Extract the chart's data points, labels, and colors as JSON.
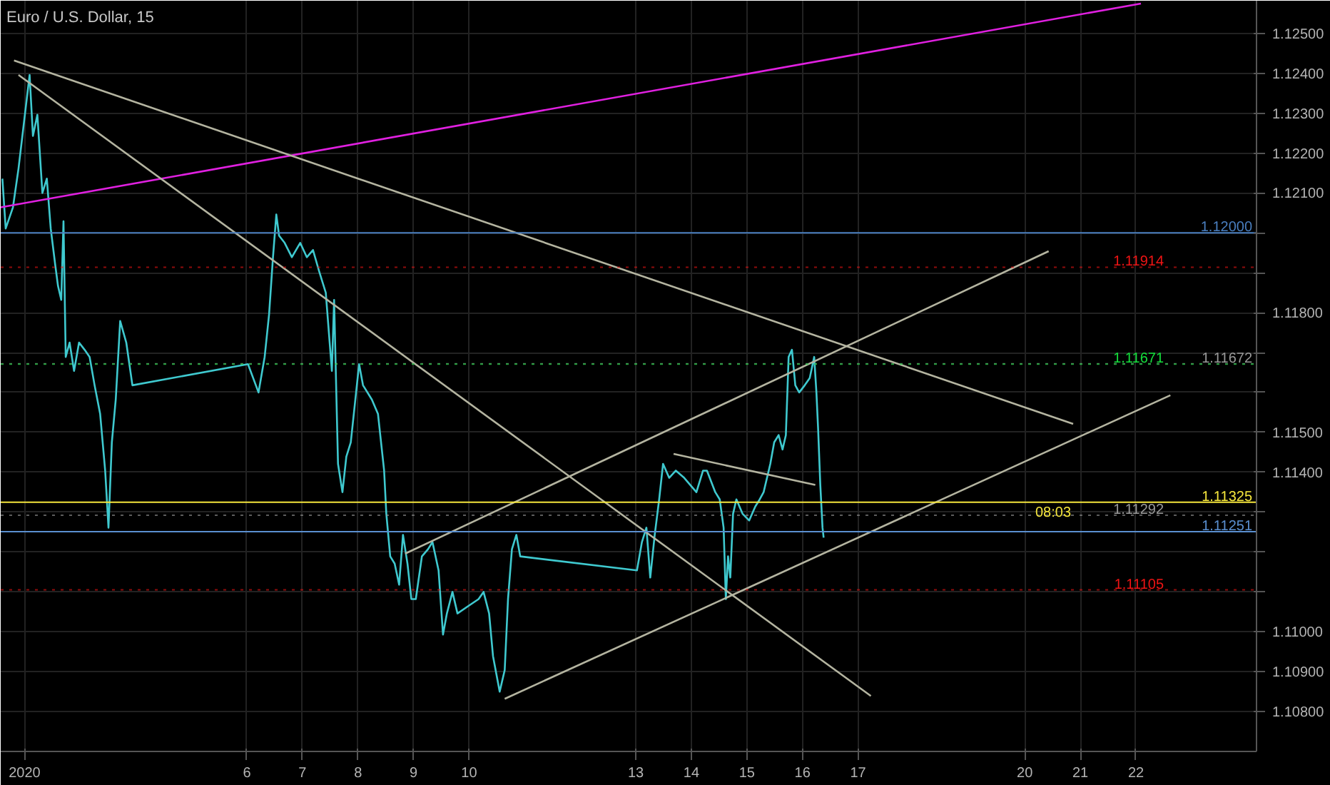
{
  "chart_data": {
    "type": "line",
    "title": "Euro / U.S. Dollar, 15",
    "xlim": [
      "2020-01-01T13:41",
      "2020-01-24T04:05"
    ],
    "ylim": [
      1.107,
      1.12582
    ],
    "xticks": [
      {
        "value": "2020-01-02",
        "label": "2020"
      },
      {
        "value": "2020-01-06",
        "label": "6"
      },
      {
        "value": "2020-01-07",
        "label": "7"
      },
      {
        "value": "2020-01-08",
        "label": "8"
      },
      {
        "value": "2020-01-09",
        "label": "9"
      },
      {
        "value": "2020-01-10",
        "label": "10"
      },
      {
        "value": "2020-01-13",
        "label": "13"
      },
      {
        "value": "2020-01-14",
        "label": "14"
      },
      {
        "value": "2020-01-15",
        "label": "15"
      },
      {
        "value": "2020-01-16",
        "label": "16"
      },
      {
        "value": "2020-01-17",
        "label": "17"
      },
      {
        "value": "2020-01-20",
        "label": "20"
      },
      {
        "value": "2020-01-21",
        "label": "21"
      },
      {
        "value": "2020-01-22",
        "label": "22"
      }
    ],
    "yticks": [
      {
        "value": 1.108,
        "label": "1.10800"
      },
      {
        "value": 1.109,
        "label": "1.10900"
      },
      {
        "value": 1.11,
        "label": "1.11000"
      },
      {
        "value": 1.111,
        "label": null
      },
      {
        "value": 1.112,
        "label": null
      },
      {
        "value": 1.113,
        "label": null
      },
      {
        "value": 1.114,
        "label": "1.11400"
      },
      {
        "value": 1.115,
        "label": "1.11500"
      },
      {
        "value": 1.116,
        "label": null
      },
      {
        "value": 1.117,
        "label": null
      },
      {
        "value": 1.118,
        "label": "1.11800"
      },
      {
        "value": 1.119,
        "label": null
      },
      {
        "value": 1.12,
        "label": null
      },
      {
        "value": 1.121,
        "label": "1.12100"
      },
      {
        "value": 1.122,
        "label": "1.12200"
      },
      {
        "value": 1.123,
        "label": "1.12300"
      },
      {
        "value": 1.124,
        "label": "1.12400"
      },
      {
        "value": 1.125,
        "label": "1.12500"
      }
    ],
    "grid": true,
    "marker": "none",
    "line_style": "solid",
    "series": [
      {
        "color": "#3fc9cf",
        "x": [
          "2020-01-01T14:24",
          "2020-01-01T15:50",
          "2020-01-01T18:58",
          "2020-01-01T21:22",
          "2020-01-02T00:29",
          "2020-01-02T02:10",
          "2020-01-02T03:36",
          "2020-01-02T05:31",
          "2020-01-02T07:41",
          "2020-01-02T09:36",
          "2020-01-02T11:17",
          "2020-01-02T13:12",
          "2020-01-02T14:24",
          "2020-01-02T15:50",
          "2020-01-02T16:48",
          "2020-01-02T17:46",
          "2020-01-02T19:26",
          "2020-01-02T21:22",
          "2020-01-02T23:31",
          "2020-01-03T01:55",
          "2020-01-03T04:05",
          "2020-01-03T06:14",
          "2020-01-03T08:38",
          "2020-01-03T10:48",
          "2020-01-03T12:14",
          "2020-01-03T13:41",
          "2020-01-03T15:22",
          "2020-01-03T17:17",
          "2020-01-03T19:55",
          "2020-01-03T22:34",
          "2020-01-06T00:29",
          "2020-01-06T05:02",
          "2020-01-06T07:41",
          "2020-01-06T09:36",
          "2020-01-06T11:17",
          "2020-01-06T12:43",
          "2020-01-06T13:55",
          "2020-01-06T16:19",
          "2020-01-06T19:26",
          "2020-01-06T23:02",
          "2020-01-07T01:55",
          "2020-01-07T04:34",
          "2020-01-07T07:12",
          "2020-01-07T10:05",
          "2020-01-07T11:46",
          "2020-01-07T12:43",
          "2020-01-07T13:41",
          "2020-01-07T15:22",
          "2020-01-07T17:17",
          "2020-01-07T18:58",
          "2020-01-07T20:53",
          "2020-01-08T00:29",
          "2020-01-08T02:10",
          "2020-01-08T06:00",
          "2020-01-08T08:38",
          "2020-01-08T11:17",
          "2020-01-08T12:14",
          "2020-01-08T13:55",
          "2020-01-08T15:50",
          "2020-01-08T17:46",
          "2020-01-08T19:26",
          "2020-01-08T21:22",
          "2020-01-08T23:02",
          "2020-01-09T00:58",
          "2020-01-09T03:36",
          "2020-01-09T06:14",
          "2020-01-09T08:10",
          "2020-01-09T10:48",
          "2020-01-09T12:43",
          "2020-01-09T14:24",
          "2020-01-09T16:48",
          "2020-01-09T18:58",
          "2020-01-09T23:31",
          "2020-01-10T04:05",
          "2020-01-10T06:14",
          "2020-01-10T08:38",
          "2020-01-10T10:19",
          "2020-01-10T13:12",
          "2020-01-10T15:22",
          "2020-01-10T16:48",
          "2020-01-10T18:29",
          "2020-01-10T20:24",
          "2020-01-10T22:05",
          "2020-01-13T00:29",
          "2020-01-13T02:38",
          "2020-01-13T04:34",
          "2020-01-13T06:14",
          "2020-01-13T08:10",
          "2020-01-13T10:05",
          "2020-01-13T11:46",
          "2020-01-13T14:24",
          "2020-01-13T17:17",
          "2020-01-13T20:53",
          "2020-01-13T23:31",
          "2020-01-14T02:10",
          "2020-01-14T05:02",
          "2020-01-14T06:43",
          "2020-01-14T10:19",
          "2020-01-14T12:14",
          "2020-01-14T13:55",
          "2020-01-14T14:53",
          "2020-01-14T15:50",
          "2020-01-14T16:48",
          "2020-01-14T18:00",
          "2020-01-14T19:26",
          "2020-01-14T22:05",
          "2020-01-15T00:58",
          "2020-01-15T03:36",
          "2020-01-15T05:31",
          "2020-01-15T07:12",
          "2020-01-15T10:05",
          "2020-01-15T11:46",
          "2020-01-15T13:41",
          "2020-01-15T15:22",
          "2020-01-15T16:48",
          "2020-01-15T18:00",
          "2020-01-15T19:26",
          "2020-01-15T20:53",
          "2020-01-15T22:34",
          "2020-01-16T00:58",
          "2020-01-16T03:07",
          "2020-01-16T05:02",
          "2020-01-16T06:00",
          "2020-01-16T06:43",
          "2020-01-16T07:41",
          "2020-01-16T08:38",
          "2020-01-16T09:07"
        ],
        "values": [
          1.12136,
          1.12011,
          1.12064,
          1.12161,
          1.12314,
          1.12396,
          1.12243,
          1.12296,
          1.121,
          1.12136,
          1.12011,
          1.11921,
          1.11868,
          1.11832,
          1.12029,
          1.11689,
          1.11725,
          1.11654,
          1.11725,
          1.11707,
          1.11689,
          1.11618,
          1.11546,
          1.11404,
          1.11261,
          1.11475,
          1.11582,
          1.11779,
          1.11725,
          1.11618,
          1.11671,
          1.116,
          1.11689,
          1.11796,
          1.11939,
          1.12046,
          1.11993,
          1.11975,
          1.11939,
          1.11975,
          1.11939,
          1.11957,
          1.11904,
          1.1185,
          1.11725,
          1.11654,
          1.11832,
          1.11421,
          1.1135,
          1.11439,
          1.11475,
          1.11671,
          1.11618,
          1.11582,
          1.11546,
          1.11404,
          1.11296,
          1.11189,
          1.11171,
          1.11118,
          1.11243,
          1.11171,
          1.11082,
          1.11082,
          1.11189,
          1.11207,
          1.11225,
          1.11154,
          1.10993,
          1.11046,
          1.111,
          1.11046,
          1.11064,
          1.11082,
          1.111,
          1.11046,
          1.10939,
          1.1085,
          1.10904,
          1.11082,
          1.11207,
          1.11243,
          1.11189,
          1.11154,
          1.11225,
          1.11261,
          1.11136,
          1.11243,
          1.11332,
          1.11421,
          1.11386,
          1.11404,
          1.11386,
          1.11368,
          1.1135,
          1.11404,
          1.11404,
          1.1135,
          1.11332,
          1.11261,
          1.11082,
          1.11189,
          1.11136,
          1.11296,
          1.11332,
          1.11296,
          1.11279,
          1.11314,
          1.11332,
          1.1135,
          1.11421,
          1.11475,
          1.11493,
          1.11457,
          1.11493,
          1.11689,
          1.11707,
          1.11618,
          1.116,
          1.11618,
          1.11636,
          1.11689,
          1.116,
          1.11511,
          1.11368,
          1.11261,
          1.11236
        ]
      },
      {
        "type": "line",
        "color": "#e020e0",
        "x": [
          "2020-01-01T13:41",
          "2020-01-22T02:10"
        ],
        "values": [
          1.12064,
          1.12575
        ]
      },
      {
        "type": "line",
        "color": "#b4b4a0",
        "x": [
          "2020-01-01T19:26",
          "2020-01-20T20:53"
        ],
        "values": [
          1.12432,
          1.11521
        ]
      },
      {
        "type": "line",
        "color": "#b4b4a0",
        "x": [
          "2020-01-01T21:22",
          "2020-01-17T05:31"
        ],
        "values": [
          1.12396,
          1.10839
        ]
      },
      {
        "type": "line",
        "color": "#b4b4a0",
        "x": [
          "2020-01-08T20:24",
          "2020-01-20T10:19"
        ],
        "values": [
          1.11196,
          1.11954
        ]
      },
      {
        "type": "line",
        "color": "#b4b4a0",
        "x": [
          "2020-01-10T15:22",
          "2020-01-22T14:53"
        ],
        "values": [
          1.10832,
          1.11593
        ]
      },
      {
        "type": "line",
        "color": "#b4b4a0",
        "x": [
          "2020-01-13T16:19",
          "2020-01-16T05:31"
        ],
        "values": [
          1.11446,
          1.11368
        ]
      }
    ],
    "ref_lines": [
      {
        "axis": "y",
        "value": 1.11325,
        "label": "1.11325",
        "color": "#f5e63c",
        "line_style": "solid"
      },
      {
        "axis": "y",
        "value": 1.12,
        "label": "1.12000",
        "color": "#4a7fc0",
        "line_style": "solid"
      },
      {
        "axis": "y",
        "value": 1.11251,
        "label": "1.11251",
        "color": "#5a8fd0",
        "line_style": "solid"
      },
      {
        "axis": "y",
        "value": 1.11914,
        "label": "1.11914",
        "color": "#f01414",
        "line_style": "dotted"
      },
      {
        "axis": "y",
        "value": 1.11672,
        "label": "1.11672",
        "color": "#9a9a9a",
        "line_style": "dotted"
      },
      {
        "axis": "y",
        "value": 1.11671,
        "label": "1.11671",
        "color": "#14e03c",
        "line_style": "dotted"
      },
      {
        "axis": "y",
        "value": 1.11292,
        "label": "1.11292",
        "color": "#9a9a9a",
        "line_style": "dotted"
      },
      {
        "axis": "y",
        "value": 1.11105,
        "label": "1.11105",
        "color": "#f01414",
        "line_style": "dotted"
      }
    ],
    "annotations": [
      "08:03"
    ]
  }
}
